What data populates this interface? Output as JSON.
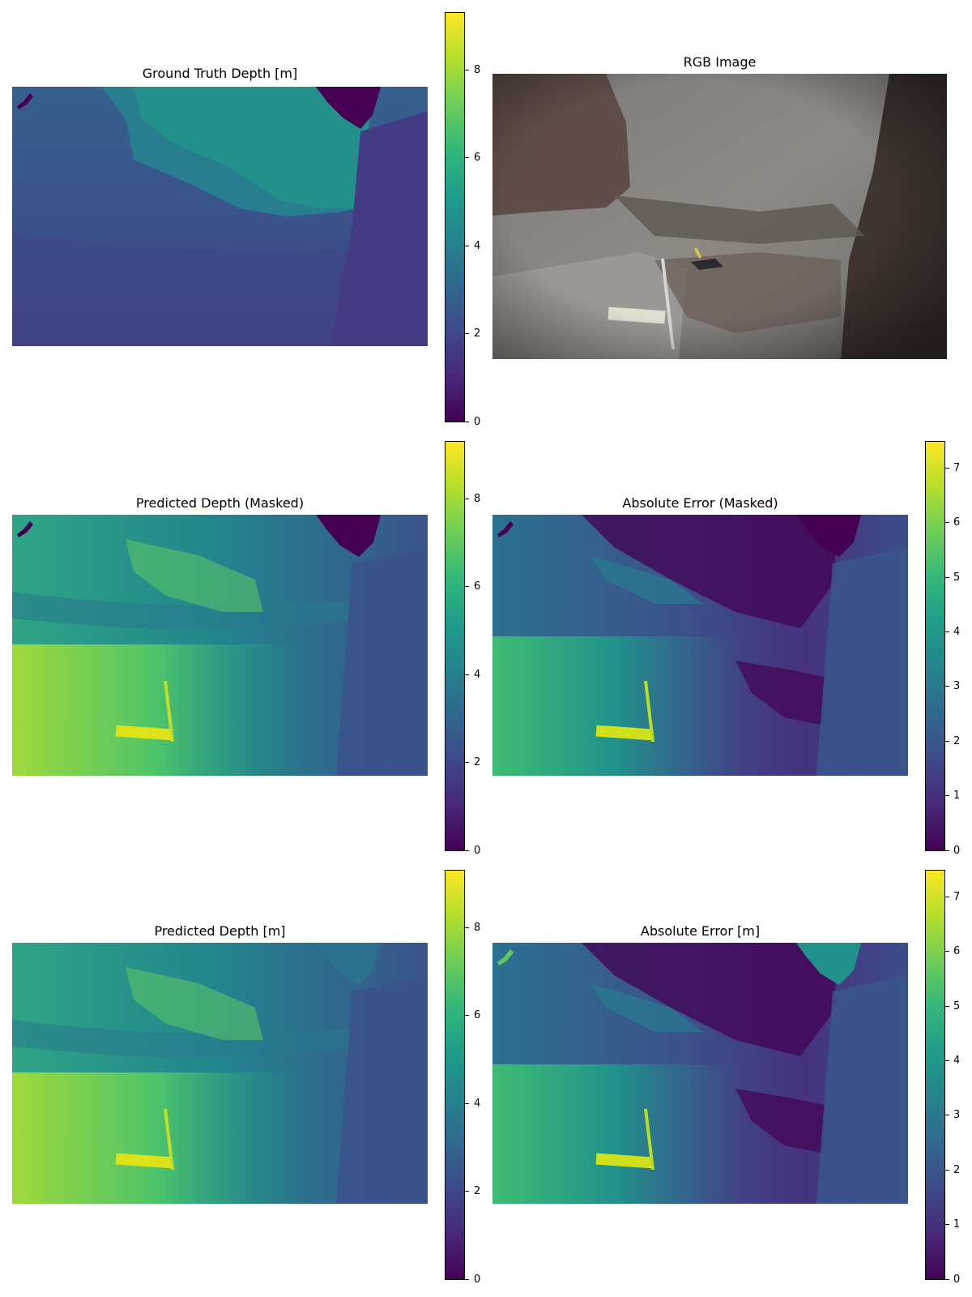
{
  "chart_data": [
    {
      "type": "heatmap",
      "title": "Ground Truth Depth [m]",
      "colormap": "viridis",
      "colorbar": {
        "min": 0,
        "max": 9.3,
        "ticks": [
          0,
          2,
          4,
          6,
          8
        ],
        "tick_labels": [
          "0",
          "2",
          "4",
          "6",
          "8"
        ]
      }
    },
    {
      "type": "image",
      "title": "RGB Image"
    },
    {
      "type": "heatmap",
      "title": "Predicted Depth (Masked)",
      "colormap": "viridis",
      "colorbar": {
        "min": 0,
        "max": 9.3,
        "ticks": [
          0,
          2,
          4,
          6,
          8
        ],
        "tick_labels": [
          "0",
          "2",
          "4",
          "6",
          "8"
        ]
      }
    },
    {
      "type": "heatmap",
      "title": "Absolute Error (Masked)",
      "colormap": "viridis",
      "colorbar": {
        "min": 0,
        "max": 7.5,
        "ticks": [
          0,
          1,
          2,
          3,
          4,
          5,
          6,
          7
        ],
        "tick_labels": [
          "0",
          "1",
          "2",
          "3",
          "4",
          "5",
          "6",
          "7"
        ]
      }
    },
    {
      "type": "heatmap",
      "title": "Predicted Depth [m]",
      "colormap": "viridis",
      "colorbar": {
        "min": 0,
        "max": 9.3,
        "ticks": [
          0,
          2,
          4,
          6,
          8
        ],
        "tick_labels": [
          "0",
          "2",
          "4",
          "6",
          "8"
        ]
      }
    },
    {
      "type": "heatmap",
      "title": "Absolute Error [m]",
      "colormap": "viridis",
      "colorbar": {
        "min": 0,
        "max": 7.5,
        "ticks": [
          0,
          1,
          2,
          3,
          4,
          5,
          6,
          7
        ],
        "tick_labels": [
          "0",
          "1",
          "2",
          "3",
          "4",
          "5",
          "6",
          "7"
        ]
      }
    }
  ]
}
